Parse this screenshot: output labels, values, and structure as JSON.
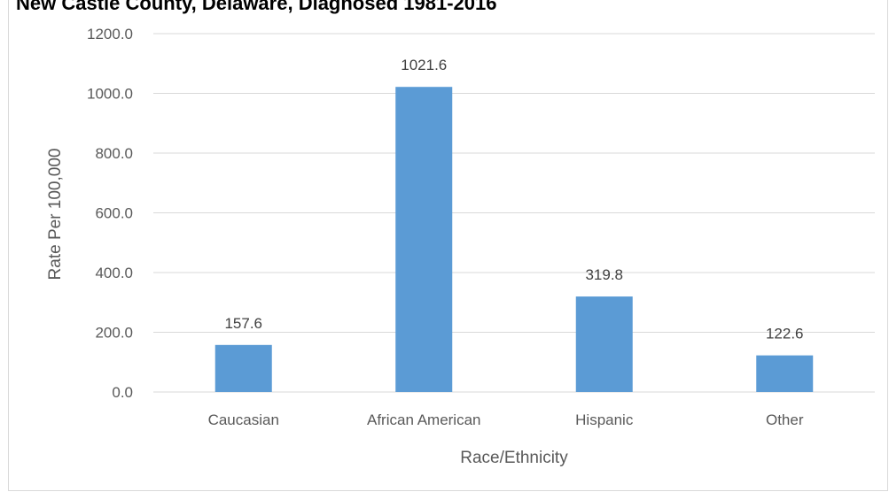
{
  "chart_data": {
    "type": "bar",
    "title": "New Castle County, Delaware, Diagnosed 1981-2016",
    "xlabel": "Race/Ethnicity",
    "ylabel": "Rate Per 100,000",
    "categories": [
      "Caucasian",
      "African American",
      "Hispanic",
      "Other"
    ],
    "values": [
      157.6,
      1021.6,
      319.8,
      122.6
    ],
    "data_labels": [
      "157.6",
      "1021.6",
      "319.8",
      "122.6"
    ],
    "ylim": [
      0,
      1200
    ],
    "yticks": [
      "0.0",
      "200.0",
      "400.0",
      "600.0",
      "800.0",
      "1000.0",
      "1200.0"
    ],
    "grid": true,
    "legend": "none",
    "bar_color": "#5b9bd5",
    "grid_color": "#d9d9d9"
  }
}
